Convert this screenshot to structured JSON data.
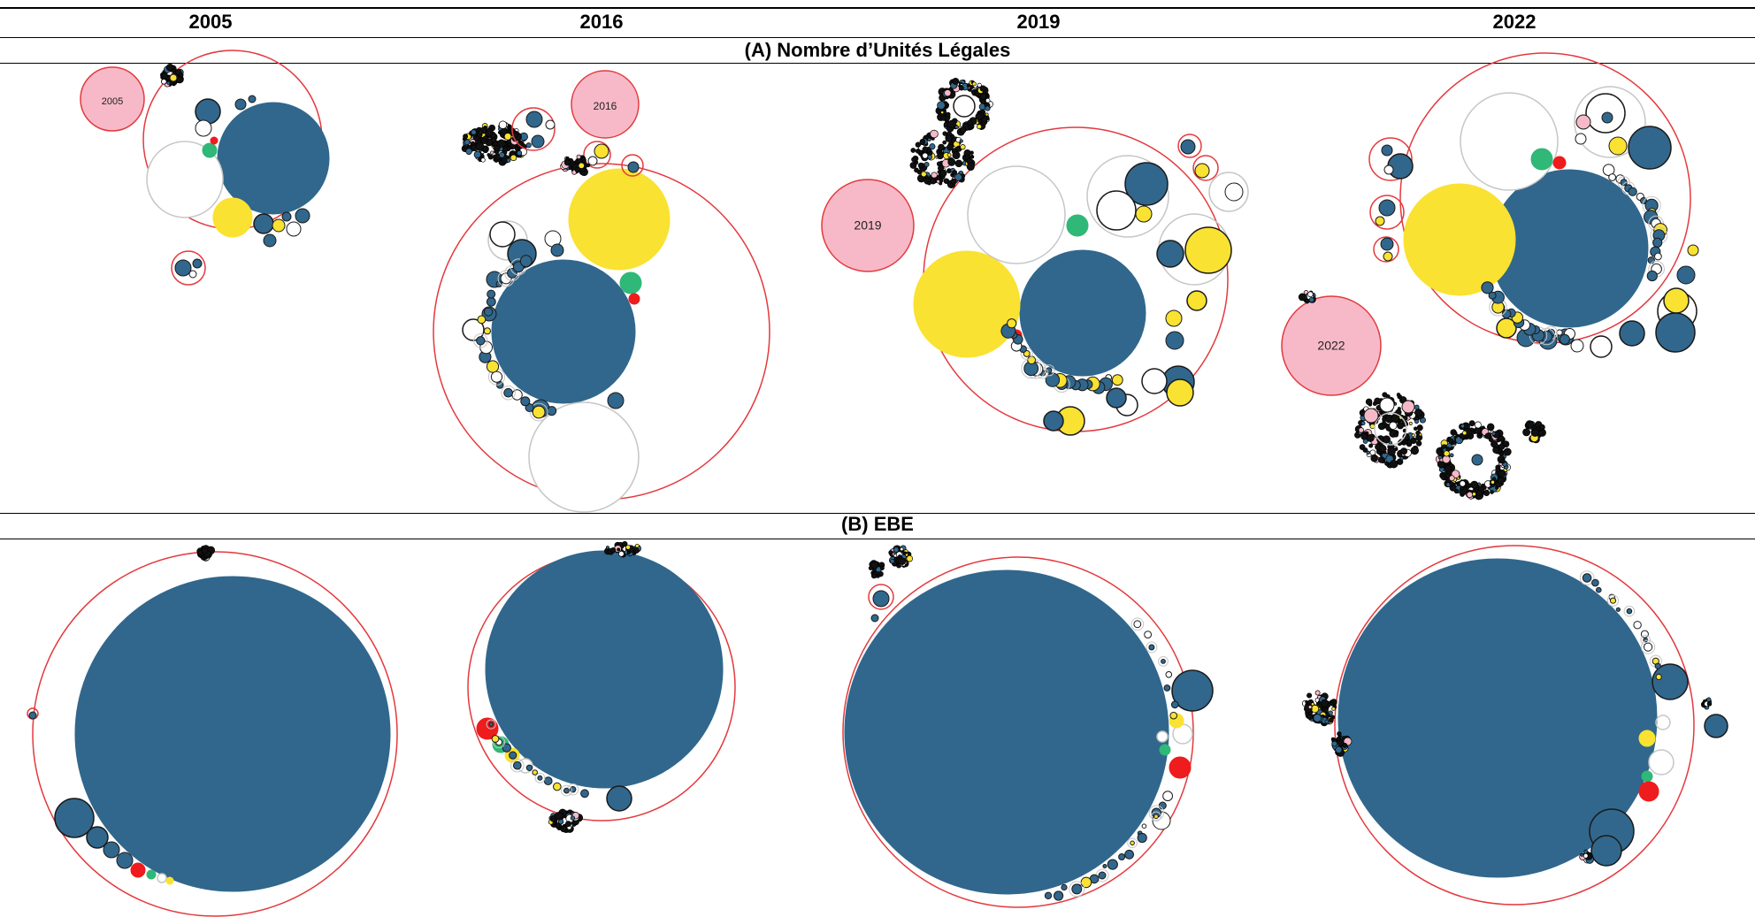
{
  "columns": [
    {
      "year": "2005"
    },
    {
      "year": "2016"
    },
    {
      "year": "2019"
    },
    {
      "year": "2022"
    }
  ],
  "sections": {
    "a": {
      "title": "(A) Nombre d’Unités Légales"
    },
    "b": {
      "title": "(B) EBE"
    }
  },
  "palette": {
    "blue": "#31678c",
    "yellow": "#f9e231",
    "green": "#2fb877",
    "red": "#ee1c1c",
    "pink": "#f7b9c8",
    "white": "#ffffff",
    "outline_red": "#e4393d",
    "outline_grey": "#c6c6c6"
  },
  "cluster_labels": {
    "2005": "2005",
    "2016": "2016",
    "2019": "2019",
    "2022": "2022"
  }
}
